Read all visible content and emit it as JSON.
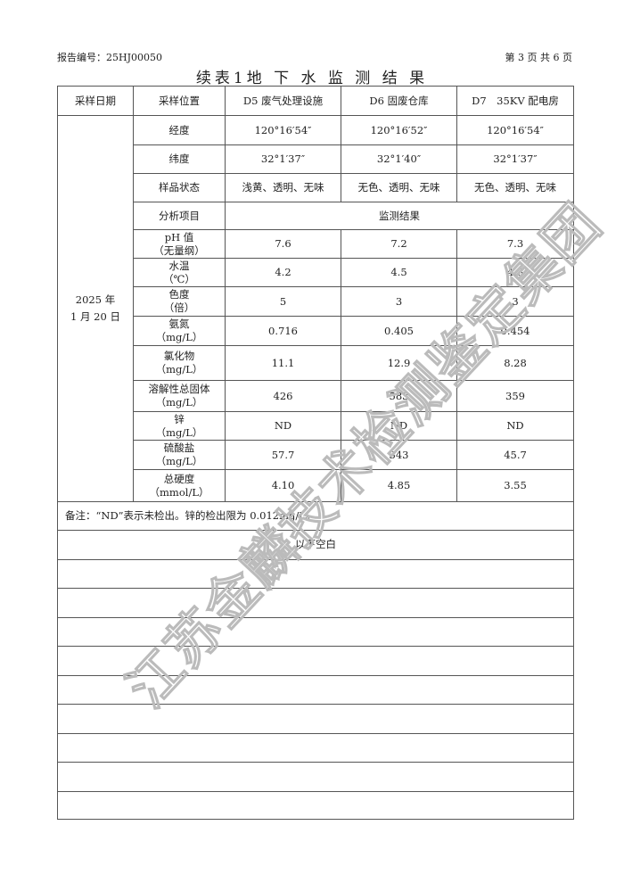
{
  "report_no": "报告编号：25HJ00050",
  "page": "第 3 页 共 6 页",
  "title": "续表1地 下 水 监 测 结 果",
  "headers": [
    "采样日期",
    "采样位置",
    "D5 废气处理设施",
    "D6 固废仓库",
    "D7　35KV 配电房"
  ],
  "date": [
    "2025 年",
    "1 月 20 日"
  ],
  "info_rows": [
    {
      "label": "经度",
      "values": [
        "120°16′54″",
        "120°16′52″",
        "120°16′54″"
      ]
    },
    {
      "label": "纬度",
      "values": [
        "32°1′37″",
        "32°1′40″",
        "32°1′37″"
      ]
    },
    {
      "label": "样品状态",
      "values": [
        "浅黄、透明、无味",
        "无色、透明、无味",
        "无色、透明、无味"
      ]
    }
  ],
  "analysis_label": "分析项目",
  "results_label": "监测结果",
  "result_rows": [
    {
      "name": "pH 值",
      "unit": "（无量纲）",
      "values": [
        "7.6",
        "7.2",
        "7.3"
      ]
    },
    {
      "name": "水温",
      "unit": "（℃）",
      "values": [
        "4.2",
        "4.5",
        "4.3"
      ]
    },
    {
      "name": "色度",
      "unit": "（倍）",
      "values": [
        "5",
        "3",
        "3"
      ]
    },
    {
      "name": "氨氮",
      "unit": "（mg/L）",
      "values": [
        "0.716",
        "0.405",
        "0.454"
      ]
    },
    {
      "name": "氯化物",
      "unit": "（mg/L）",
      "values": [
        "11.1",
        "12.9",
        "8.28"
      ]
    },
    {
      "name": "溶解性总固体",
      "unit": "（mg/L）",
      "values": [
        "426",
        "583",
        "359"
      ]
    },
    {
      "name": "锌",
      "unit": "（mg/L）",
      "values": [
        "ND",
        "ND",
        "ND"
      ]
    },
    {
      "name": "硫酸盐",
      "unit": "（mg/L）",
      "values": [
        "57.7",
        "343",
        "45.7"
      ]
    },
    {
      "name": "总硬度",
      "unit": "（mmol/L）",
      "values": [
        "4.10",
        "4.85",
        "3.55"
      ]
    }
  ],
  "note": "备注：“ND”表示未检出。锌的检出限为 0.012mg/L。",
  "blank_text": "以下空白",
  "blank_row_count": 10,
  "watermark": "江苏金麟技术检测鉴定集团"
}
